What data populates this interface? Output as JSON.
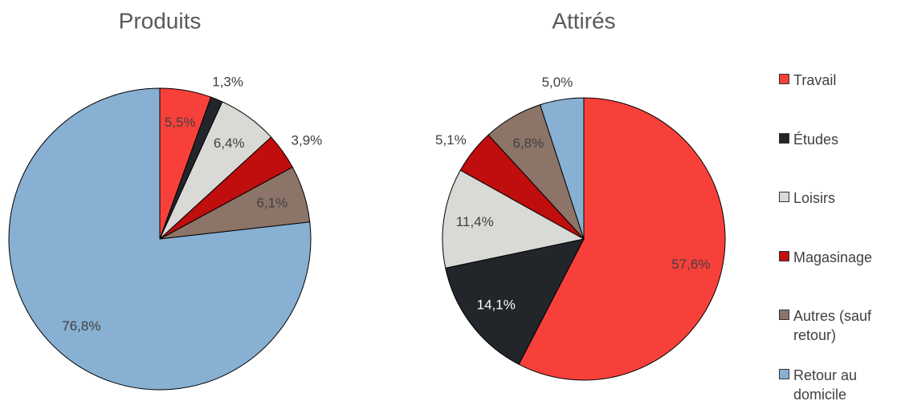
{
  "chart_data": [
    {
      "type": "pie",
      "title": "Produits",
      "categories": [
        "Travail",
        "Études",
        "Loisirs",
        "Magasinage",
        "Autres (sauf retour)",
        "Retour au domicile"
      ],
      "values": [
        5.5,
        1.3,
        6.4,
        3.9,
        6.1,
        76.8
      ],
      "value_labels": [
        "5,5%",
        "1,3%",
        "6,4%",
        "3,9%",
        "6,1%",
        "76,8%"
      ],
      "colors": [
        "#f8403a",
        "#22262b",
        "#d9d9d6",
        "#c00d0d",
        "#8c7468",
        "#87b0d2"
      ]
    },
    {
      "type": "pie",
      "title": "Attirés",
      "categories": [
        "Travail",
        "Études",
        "Loisirs",
        "Magasinage",
        "Autres (sauf retour)",
        "Retour au domicile"
      ],
      "values": [
        57.6,
        14.1,
        11.4,
        5.1,
        6.8,
        5.0
      ],
      "value_labels": [
        "57,6%",
        "14,1%",
        "11,4%",
        "5,1%",
        "6,8%",
        "5,0%"
      ],
      "colors": [
        "#f8403a",
        "#22262b",
        "#d9d9d6",
        "#c00d0d",
        "#8c7468",
        "#87b0d2"
      ]
    }
  ]
}
